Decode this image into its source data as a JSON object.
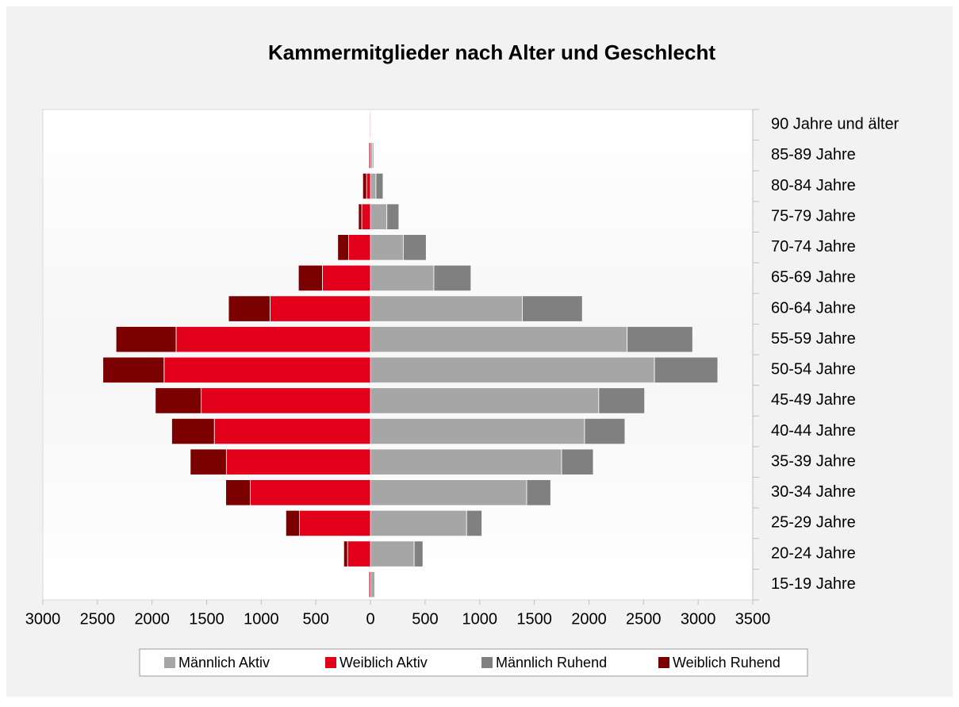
{
  "chart_data": {
    "type": "bar",
    "orientation": "horizontal",
    "stacked": true,
    "title": "Kammermitglieder nach Alter und Geschlecht",
    "categories": [
      "15-19 Jahre",
      "20-24 Jahre",
      "25-29 Jahre",
      "30-34 Jahre",
      "35-39 Jahre",
      "40-44 Jahre",
      "45-49 Jahre",
      "50-54 Jahre",
      "55-59 Jahre",
      "60-64 Jahre",
      "65-69 Jahre",
      "70-74 Jahre",
      "75-79 Jahre",
      "80-84 Jahre",
      "85-89 Jahre",
      "90 Jahre und älter"
    ],
    "series": [
      {
        "name": "Männlich Aktiv",
        "color": "#a6a6a6",
        "values": [
          40,
          400,
          880,
          1430,
          1750,
          1960,
          2090,
          2600,
          2350,
          1390,
          580,
          300,
          150,
          50,
          20,
          5
        ]
      },
      {
        "name": "Weiblich Aktiv",
        "color": "#e3001b",
        "values": [
          -15,
          -210,
          -650,
          -1100,
          -1320,
          -1430,
          -1550,
          -1890,
          -1780,
          -920,
          -440,
          -200,
          -80,
          -36,
          -15,
          -7
        ]
      },
      {
        "name": "Männlich Ruhend",
        "color": "#808080",
        "values": [
          5,
          80,
          140,
          220,
          290,
          370,
          420,
          580,
          600,
          550,
          340,
          210,
          110,
          65,
          10,
          3
        ]
      },
      {
        "name": "Weiblich Ruhend",
        "color": "#7b0000",
        "values": [
          -2,
          -35,
          -125,
          -225,
          -330,
          -390,
          -420,
          -560,
          -550,
          -380,
          -220,
          -100,
          -30,
          -35,
          -5,
          -2
        ]
      }
    ],
    "xlim": [
      -3000,
      3500
    ],
    "xticks": [
      {
        "value": -3000,
        "label": "3000"
      },
      {
        "value": -2500,
        "label": "2500"
      },
      {
        "value": -2000,
        "label": "2000"
      },
      {
        "value": -1500,
        "label": "1500"
      },
      {
        "value": -1000,
        "label": "1000"
      },
      {
        "value": -500,
        "label": "500"
      },
      0,
      500,
      1000,
      1500,
      2000,
      2500,
      3000,
      3500
    ],
    "legend": "bottom"
  }
}
